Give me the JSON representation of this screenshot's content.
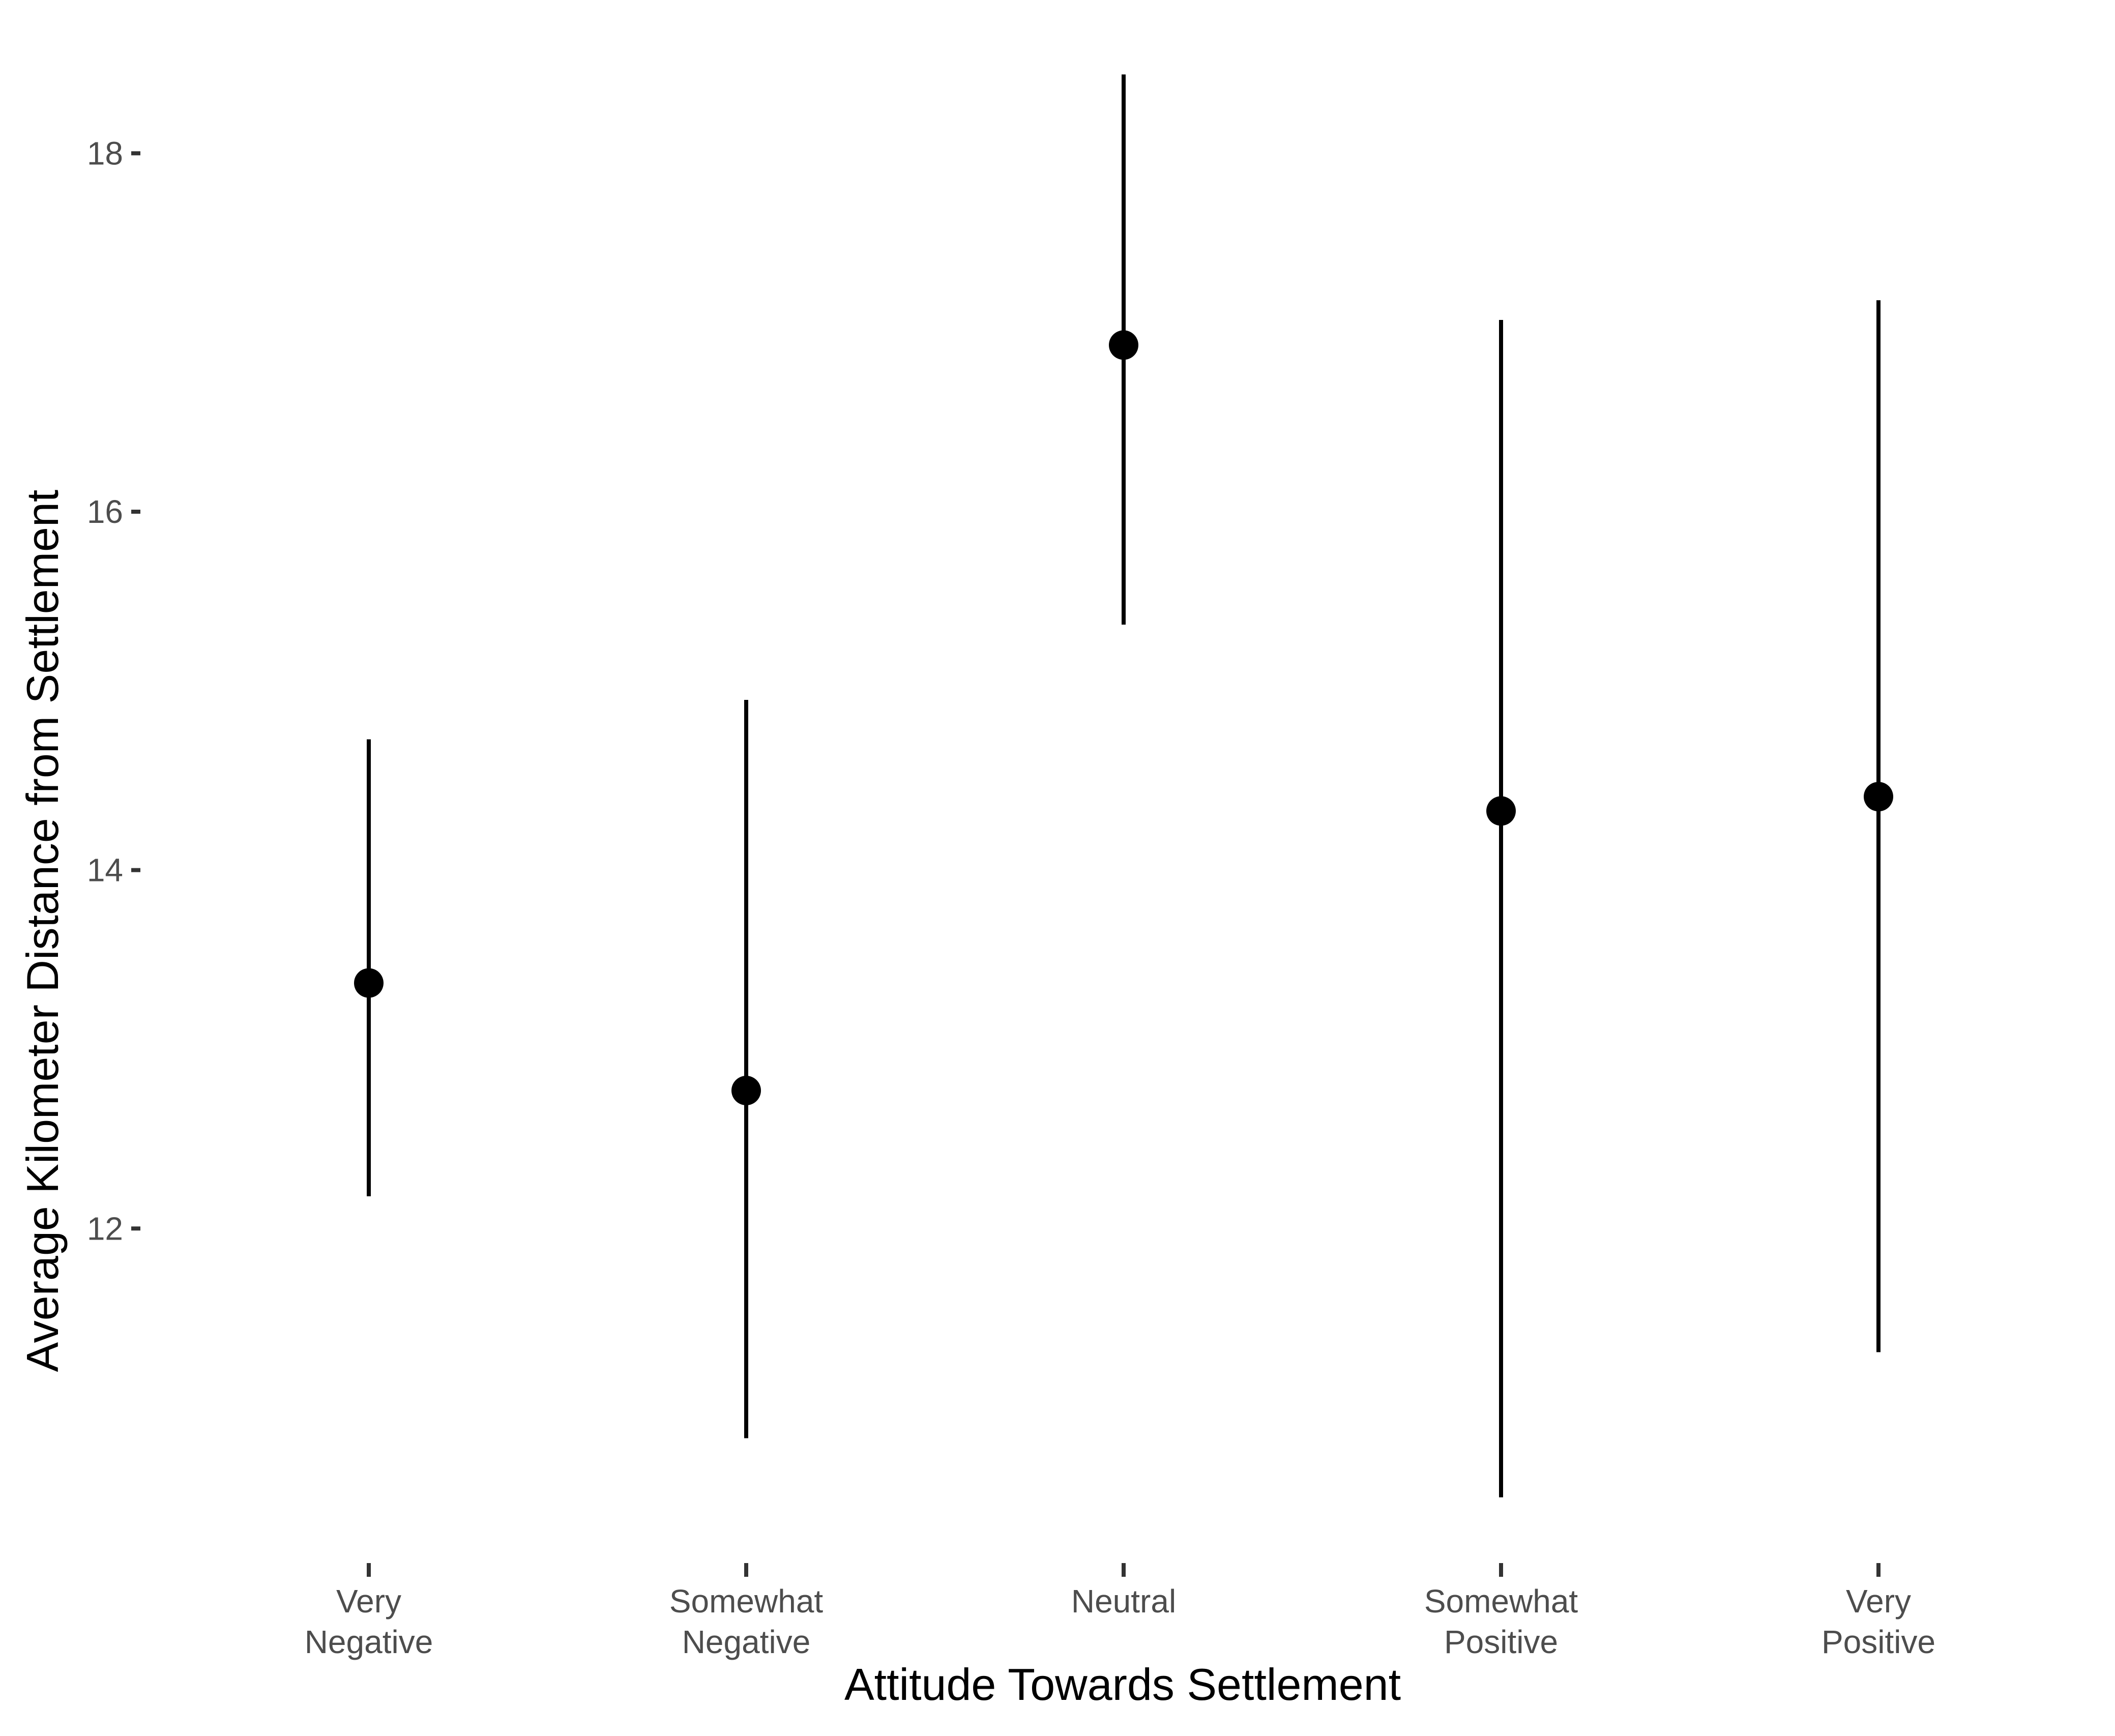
{
  "chart_data": {
    "type": "errorbar",
    "title": "",
    "xlabel": "Attitude Towards Settlement",
    "ylabel": "Average Kilometer Distance from Settlement",
    "categories": [
      [
        "Very",
        "Negative"
      ],
      [
        "Somewhat",
        "Negative"
      ],
      [
        "Neutral"
      ],
      [
        "Somewhat",
        "Positive"
      ],
      [
        "Very",
        "Positive"
      ]
    ],
    "points": [
      {
        "estimate": 13.37,
        "lower": 12.18,
        "upper": 14.73
      },
      {
        "estimate": 12.77,
        "lower": 10.83,
        "upper": 14.95
      },
      {
        "estimate": 16.93,
        "lower": 15.37,
        "upper": 18.44
      },
      {
        "estimate": 14.33,
        "lower": 10.5,
        "upper": 17.07
      },
      {
        "estimate": 14.41,
        "lower": 11.31,
        "upper": 17.18
      }
    ],
    "yticks": [
      12,
      14,
      16,
      18
    ],
    "ylim": [
      10.17,
      18.6
    ],
    "grid": false,
    "legend": "none",
    "colors": {
      "point": "#000000",
      "errorbar": "#000000",
      "tick_label": "#4d4d4d",
      "axis_title": "#000000",
      "tick_mark": "#333333"
    }
  }
}
